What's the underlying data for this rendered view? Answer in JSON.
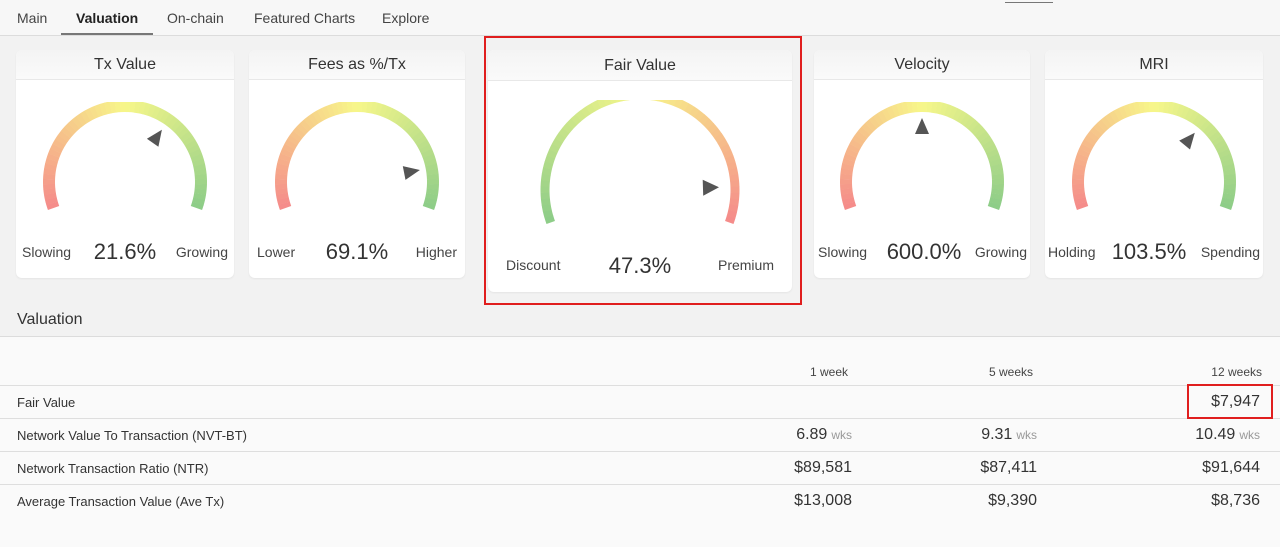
{
  "tabs": [
    {
      "label": "Main"
    },
    {
      "label": "Valuation"
    },
    {
      "label": "On-chain"
    },
    {
      "label": "Featured Charts"
    },
    {
      "label": "Explore"
    }
  ],
  "gauges": [
    {
      "title": "Tx Value",
      "left": "Slowing",
      "value": "21.6%",
      "right": "Growing",
      "direction": "red-to-green",
      "pointer": 0.66
    },
    {
      "title": "Fees as %/Tx",
      "left": "Lower",
      "value": "69.1%",
      "right": "Higher",
      "direction": "red-to-green",
      "pointer": 0.86
    },
    {
      "title": "Fair Value",
      "left": "Discount",
      "value": "47.3%",
      "right": "Premium",
      "direction": "green-to-red",
      "pointer": 0.9
    },
    {
      "title": "Velocity",
      "left": "Slowing",
      "value": "600.0%",
      "right": "Growing",
      "direction": "red-to-green",
      "pointer": 0.5
    },
    {
      "title": "MRI",
      "left": "Holding",
      "value": "103.5%",
      "right": "Spending",
      "direction": "red-to-green",
      "pointer": 0.68
    }
  ],
  "colors": {
    "gauge_red": "#f58a8a",
    "gauge_yellow": "#f7f78a",
    "gauge_green": "#8ccc88",
    "highlight": "#e01e1e"
  },
  "valuation": {
    "title": "Valuation",
    "columns": [
      "1 week",
      "5 weeks",
      "12 weeks"
    ],
    "rows": [
      {
        "label": "Fair Value",
        "cells": [
          {
            "value": "",
            "unit": ""
          },
          {
            "value": "",
            "unit": ""
          },
          {
            "value": "$7,947",
            "unit": ""
          }
        ]
      },
      {
        "label": "Network Value To Transaction (NVT-BT)",
        "cells": [
          {
            "value": "6.89",
            "unit": "wks"
          },
          {
            "value": "9.31",
            "unit": "wks"
          },
          {
            "value": "10.49",
            "unit": "wks"
          }
        ]
      },
      {
        "label": "Network Transaction Ratio (NTR)",
        "cells": [
          {
            "value": "$89,581",
            "unit": ""
          },
          {
            "value": "$87,411",
            "unit": ""
          },
          {
            "value": "$91,644",
            "unit": ""
          }
        ]
      },
      {
        "label": "Average Transaction Value (Ave Tx)",
        "cells": [
          {
            "value": "$13,008",
            "unit": ""
          },
          {
            "value": "$9,390",
            "unit": ""
          },
          {
            "value": "$8,736",
            "unit": ""
          }
        ]
      }
    ]
  }
}
